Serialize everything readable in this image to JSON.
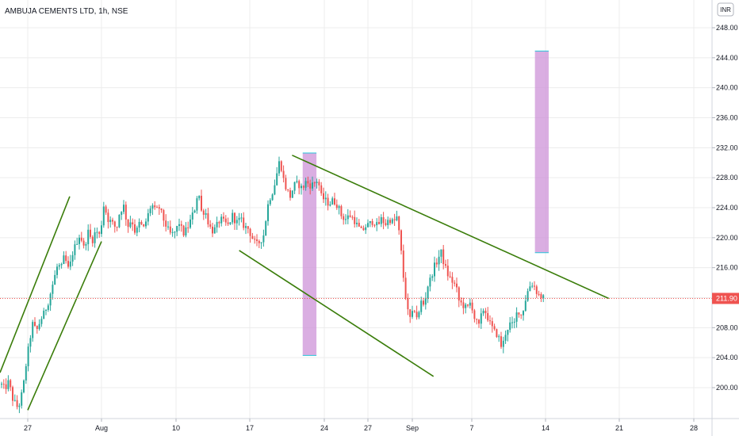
{
  "header": {
    "title": "AMBUJA CEMENTS LTD, 1h, NSE",
    "currency": "INR"
  },
  "chart_data": {
    "type": "candlestick",
    "title": "AMBUJA CEMENTS LTD, 1h, NSE",
    "ylim": [
      196,
      250
    ],
    "y_ticks": [
      "248.00",
      "244.00",
      "240.00",
      "236.00",
      "232.00",
      "228.00",
      "224.00",
      "220.00",
      "216.00",
      "212.00",
      "208.00",
      "204.00",
      "200.00"
    ],
    "x_ticks": [
      "27",
      "Aug",
      "10",
      "17",
      "24",
      "27",
      "Sep",
      "7",
      "14",
      "21",
      "28"
    ],
    "last_price": 211.9,
    "last_price_label": "211.90",
    "grid": true,
    "colors": {
      "up": "#26a69a",
      "down": "#ef5350",
      "price_line": "#ef5350",
      "trendline": "#3a7d0a",
      "highlight": "#ce93d8",
      "grid": "#ececec"
    },
    "price_path": [
      [
        0,
        200.5
      ],
      [
        5,
        199.8
      ],
      [
        10,
        200.8
      ],
      [
        15,
        198.5
      ],
      [
        22,
        197.2
      ],
      [
        28,
        199.8
      ],
      [
        32,
        203.2
      ],
      [
        36,
        206
      ],
      [
        40,
        208.5
      ],
      [
        45,
        207.5
      ],
      [
        50,
        209
      ],
      [
        55,
        210
      ],
      [
        60,
        211.5
      ],
      [
        66,
        214
      ],
      [
        72,
        216.5
      ],
      [
        76,
        215.8
      ],
      [
        80,
        217.5
      ],
      [
        86,
        215.5
      ],
      [
        90,
        217.8
      ],
      [
        96,
        219.5
      ],
      [
        100,
        220.5
      ],
      [
        105,
        218.5
      ],
      [
        110,
        220.8
      ],
      [
        115,
        219.5
      ],
      [
        120,
        221
      ],
      [
        125,
        220.2
      ],
      [
        130,
        224.5
      ],
      [
        135,
        222.5
      ],
      [
        140,
        222
      ],
      [
        146,
        221.2
      ],
      [
        150,
        223.5
      ],
      [
        155,
        224.2
      ],
      [
        160,
        221.5
      ],
      [
        165,
        222.5
      ],
      [
        170,
        220.5
      ],
      [
        175,
        222
      ],
      [
        180,
        221.2
      ],
      [
        185,
        222.8
      ],
      [
        190,
        224.5
      ],
      [
        195,
        223.5
      ],
      [
        200,
        224
      ],
      [
        205,
        222.5
      ],
      [
        210,
        221.2
      ],
      [
        215,
        220.3
      ],
      [
        220,
        220.8
      ],
      [
        225,
        222
      ],
      [
        230,
        220.5
      ],
      [
        235,
        221.2
      ],
      [
        240,
        222.5
      ],
      [
        245,
        224
      ],
      [
        249,
        226.5
      ],
      [
        253,
        223.5
      ],
      [
        258,
        223.5
      ],
      [
        263,
        221.5
      ],
      [
        268,
        220.8
      ],
      [
        272,
        221.5
      ],
      [
        277,
        222.5
      ],
      [
        282,
        222
      ],
      [
        287,
        221.6
      ],
      [
        292,
        223
      ],
      [
        297,
        222
      ],
      [
        302,
        222.5
      ],
      [
        307,
        221.5
      ],
      [
        312,
        221.2
      ],
      [
        318,
        219.8
      ],
      [
        322,
        219
      ],
      [
        327,
        219.5
      ],
      [
        332,
        220.5
      ],
      [
        336,
        224
      ],
      [
        340,
        225.5
      ],
      [
        344,
        226.5
      ],
      [
        348,
        228.5
      ],
      [
        352,
        230.5
      ],
      [
        356,
        228
      ],
      [
        360,
        226.5
      ],
      [
        365,
        225.5
      ],
      [
        370,
        227
      ],
      [
        375,
        227.2
      ],
      [
        380,
        226.5
      ],
      [
        385,
        227.5
      ],
      [
        390,
        227
      ],
      [
        395,
        227.2
      ],
      [
        400,
        227.8
      ],
      [
        404,
        225.5
      ],
      [
        409,
        225
      ],
      [
        414,
        224.5
      ],
      [
        419,
        225
      ],
      [
        425,
        224.3
      ],
      [
        430,
        222.8
      ],
      [
        435,
        222.5
      ],
      [
        440,
        223
      ],
      [
        445,
        222.5
      ],
      [
        450,
        221.5
      ],
      [
        455,
        220.8
      ],
      [
        460,
        221.5
      ],
      [
        465,
        221.8
      ],
      [
        470,
        222.3
      ],
      [
        475,
        221.5
      ],
      [
        480,
        222.5
      ],
      [
        485,
        221.8
      ],
      [
        490,
        222.5
      ],
      [
        495,
        222
      ],
      [
        500,
        222.8
      ],
      [
        505,
        218
      ],
      [
        508,
        214.5
      ],
      [
        512,
        211
      ],
      [
        515,
        209
      ],
      [
        518,
        209.5
      ],
      [
        522,
        210.5
      ],
      [
        526,
        209
      ],
      [
        530,
        211.5
      ],
      [
        534,
        211
      ],
      [
        538,
        213.5
      ],
      [
        542,
        214.5
      ],
      [
        546,
        216
      ],
      [
        551,
        217
      ],
      [
        555,
        218.2
      ],
      [
        559,
        216.5
      ],
      [
        564,
        215
      ],
      [
        569,
        214.2
      ],
      [
        574,
        213.5
      ],
      [
        578,
        211.5
      ],
      [
        583,
        211
      ],
      [
        588,
        210.5
      ],
      [
        593,
        211.5
      ],
      [
        598,
        209
      ],
      [
        603,
        208.2
      ],
      [
        608,
        210.5
      ],
      [
        612,
        210
      ],
      [
        617,
        208.5
      ],
      [
        622,
        207.5
      ],
      [
        627,
        207
      ],
      [
        632,
        205.2
      ],
      [
        637,
        207.5
      ],
      [
        642,
        208.5
      ],
      [
        647,
        208.2
      ],
      [
        652,
        210.5
      ],
      [
        657,
        209.5
      ],
      [
        661,
        211.5
      ],
      [
        665,
        213
      ],
      [
        669,
        214
      ],
      [
        673,
        213.5
      ],
      [
        677,
        212.5
      ],
      [
        681,
        212.2
      ],
      [
        685,
        211.9
      ]
    ],
    "trendlines": [
      {
        "from": [
          "22",
          202.0
        ],
        "to": [
          "Aug -3",
          225.5
        ]
      },
      {
        "from": [
          "27",
          197.0
        ],
        "to": [
          "Aug",
          219.5
        ]
      },
      {
        "from": [
          "17 -1",
          218.3
        ],
        "to": [
          "Sep 2",
          201.5
        ]
      },
      {
        "from": [
          "17 +4",
          231.0
        ],
        "to": [
          "21 -1",
          211.9
        ]
      }
    ],
    "highlight_boxes": [
      {
        "from": "17 +5",
        "to": "17 +6",
        "low": 204.3,
        "high": 231.3
      },
      {
        "from": "14 -1",
        "to": "14",
        "low": 218.0,
        "high": 244.9
      }
    ]
  }
}
